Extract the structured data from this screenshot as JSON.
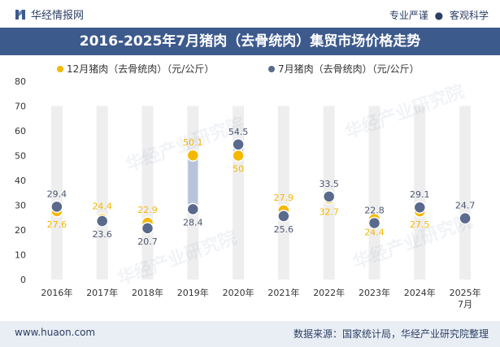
{
  "header": {
    "brand": "华经情报网",
    "tagline_left": "专业严谨",
    "tagline_sep": "●",
    "tagline_right": "客观科学"
  },
  "title": "2016-2025年7月猪肉（去骨统肉）集贸市场价格走势",
  "footer": {
    "url": "www.huaon.com",
    "source": "数据来源：国家统计局，华经产业研究院整理"
  },
  "watermark": "华经产业研究院",
  "colors": {
    "series1": "#f5b800",
    "series2": "#5a6a8c",
    "bar": "#eeeeee",
    "highlight_bar": "#b8c4dc",
    "title_band": "#3d5a8c"
  },
  "chart_data": {
    "type": "scatter",
    "categories": [
      "2016年",
      "2017年",
      "2018年",
      "2019年",
      "2020年",
      "2021年",
      "2022年",
      "2023年",
      "2024年",
      "2025年\n7月"
    ],
    "ylabel": "",
    "ylim": [
      0,
      80
    ],
    "yticks": [
      0,
      10,
      20,
      30,
      40,
      50,
      60,
      70,
      80
    ],
    "series": [
      {
        "name": "12月猪肉（去骨统肉）（元/公斤）",
        "values": [
          27.6,
          24.4,
          22.9,
          50.1,
          50,
          27.9,
          32.7,
          24.4,
          27.5,
          null
        ]
      },
      {
        "name": "7月猪肉（去骨统肉）（元/公斤）",
        "values": [
          29.4,
          23.6,
          20.7,
          28.4,
          54.5,
          25.6,
          33.5,
          22.8,
          29.1,
          24.7
        ]
      }
    ],
    "labels": {
      "series1": [
        "27.6",
        "24.4",
        "22.9",
        "50.1",
        "50",
        "27.9",
        "32.7",
        "24.4",
        "27.5",
        ""
      ],
      "series2": [
        "29.4",
        "23.6",
        "20.7",
        "28.4",
        "54.5",
        "25.6",
        "33.5",
        "22.8",
        "29.1",
        "24.7"
      ]
    },
    "label_pos": {
      "series1": [
        "below",
        "above",
        "above",
        "above",
        "below",
        "above",
        "below",
        "below",
        "below",
        ""
      ],
      "series2": [
        "above",
        "below",
        "below",
        "below",
        "above",
        "below",
        "above",
        "above",
        "above",
        "above"
      ]
    }
  }
}
